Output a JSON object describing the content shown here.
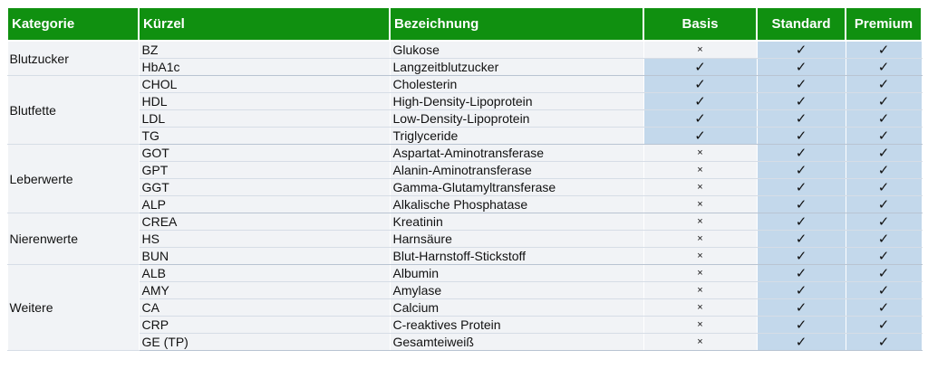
{
  "header": {
    "kategorie": "Kategorie",
    "kuerzel": "Kürzel",
    "bezeichnung": "Bezeichnung",
    "basis": "Basis",
    "standard": "Standard",
    "premium": "Premium"
  },
  "symbols": {
    "yes": "✓",
    "no": "×"
  },
  "colors": {
    "header_bg": "#109010",
    "highlight": "#c3d8eb",
    "row_bg": "#f1f3f6"
  },
  "groups": [
    {
      "name": "Blutzucker",
      "rows": [
        {
          "kuerzel": "BZ",
          "bezeichnung": "Glukose",
          "basis": false,
          "standard": true,
          "premium": true
        },
        {
          "kuerzel": "HbA1c",
          "bezeichnung": "Langzeitblutzucker",
          "basis": true,
          "standard": true,
          "premium": true
        }
      ]
    },
    {
      "name": "Blutfette",
      "rows": [
        {
          "kuerzel": "CHOL",
          "bezeichnung": "Cholesterin",
          "basis": true,
          "standard": true,
          "premium": true
        },
        {
          "kuerzel": "HDL",
          "bezeichnung": "High-Density-Lipoprotein",
          "basis": true,
          "standard": true,
          "premium": true
        },
        {
          "kuerzel": "LDL",
          "bezeichnung": "Low-Density-Lipoprotein",
          "basis": true,
          "standard": true,
          "premium": true
        },
        {
          "kuerzel": "TG",
          "bezeichnung": "Triglyceride",
          "basis": true,
          "standard": true,
          "premium": true
        }
      ]
    },
    {
      "name": "Leberwerte",
      "rows": [
        {
          "kuerzel": "GOT",
          "bezeichnung": "Aspartat-Aminotransferase",
          "basis": false,
          "standard": true,
          "premium": true
        },
        {
          "kuerzel": "GPT",
          "bezeichnung": "Alanin-Aminotransferase",
          "basis": false,
          "standard": true,
          "premium": true
        },
        {
          "kuerzel": "GGT",
          "bezeichnung": "Gamma-Glutamyltransferase",
          "basis": false,
          "standard": true,
          "premium": true
        },
        {
          "kuerzel": "ALP",
          "bezeichnung": "Alkalische Phosphatase",
          "basis": false,
          "standard": true,
          "premium": true
        }
      ]
    },
    {
      "name": "Nierenwerte",
      "rows": [
        {
          "kuerzel": "CREA",
          "bezeichnung": "Kreatinin",
          "basis": false,
          "standard": true,
          "premium": true
        },
        {
          "kuerzel": "HS",
          "bezeichnung": "Harnsäure",
          "basis": false,
          "standard": true,
          "premium": true
        },
        {
          "kuerzel": "BUN",
          "bezeichnung": "Blut-Harnstoff-Stickstoff",
          "basis": false,
          "standard": true,
          "premium": true
        }
      ]
    },
    {
      "name": "Weitere",
      "rows": [
        {
          "kuerzel": "ALB",
          "bezeichnung": "Albumin",
          "basis": false,
          "standard": true,
          "premium": true
        },
        {
          "kuerzel": "AMY",
          "bezeichnung": "Amylase",
          "basis": false,
          "standard": true,
          "premium": true
        },
        {
          "kuerzel": "CA",
          "bezeichnung": "Calcium",
          "basis": false,
          "standard": true,
          "premium": true
        },
        {
          "kuerzel": "CRP",
          "bezeichnung": "C-reaktives Protein",
          "basis": false,
          "standard": true,
          "premium": true
        },
        {
          "kuerzel": "GE (TP)",
          "bezeichnung": "Gesamteiweiß",
          "basis": false,
          "standard": true,
          "premium": true
        }
      ]
    }
  ]
}
